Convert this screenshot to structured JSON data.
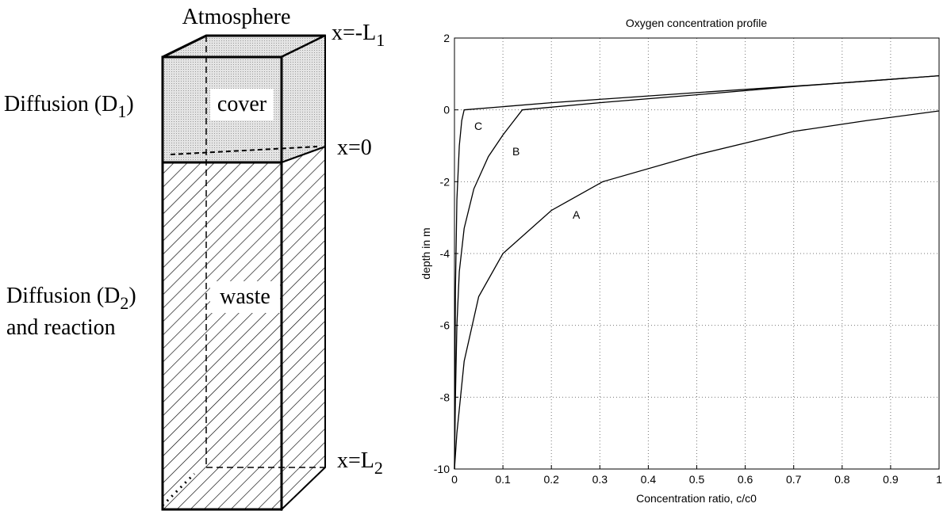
{
  "diagram": {
    "top_label": "Atmosphere",
    "boundary_top": {
      "text": "x=-L",
      "sub": "1"
    },
    "boundary_mid": "x=0",
    "boundary_bottom": {
      "text": "x=L",
      "sub": "2"
    },
    "cover_process": {
      "text": "Diffusion (D",
      "sub": "1",
      "end": ")"
    },
    "waste_process": {
      "text": "Diffusion (D",
      "sub": "2",
      "end": ")"
    },
    "waste_process_line2": "and reaction",
    "cover_label": "cover",
    "waste_label": "waste"
  },
  "chart_data": {
    "type": "line",
    "title": "Oxygen concentration profile",
    "x_label": "Concentration ratio, c/c0",
    "y_label": "depth in m",
    "xlim": [
      0,
      1
    ],
    "ylim": [
      -10,
      2
    ],
    "xticks": [
      0,
      0.1,
      0.2,
      0.3,
      0.4,
      0.5,
      0.6,
      0.7,
      0.8,
      0.9,
      1
    ],
    "yticks": [
      -10,
      -8,
      -6,
      -4,
      -2,
      0,
      2
    ],
    "grid": true,
    "series": [
      {
        "name": "A",
        "color": "#000000",
        "x": [
          0,
          0.005,
          0.02,
          0.05,
          0.1,
          0.2,
          0.306,
          0.5,
          0.7,
          0.85,
          1
        ],
        "values": [
          -10,
          -9,
          -7,
          -5.2,
          -4,
          -2.8,
          -2,
          -1.25,
          -0.6,
          -0.3,
          -0.03
        ]
      },
      {
        "name": "B",
        "color": "#000000",
        "x": [
          0,
          0.002,
          0.005,
          0.01,
          0.02,
          0.04,
          0.07,
          0.1,
          0.12,
          0.14,
          0.3,
          0.5,
          0.7,
          1
        ],
        "values": [
          -10,
          -8,
          -6,
          -4.5,
          -3.3,
          -2.2,
          -1.3,
          -0.7,
          -0.35,
          0,
          0.2,
          0.42,
          0.65,
          0.95
        ]
      },
      {
        "name": "C",
        "color": "#000000",
        "x": [
          0,
          0.002,
          0.005,
          0.01,
          0.015,
          0.02,
          0.2,
          0.5,
          0.8,
          1
        ],
        "values": [
          -10,
          -5,
          -2.5,
          -1,
          -0.3,
          0,
          0.2,
          0.48,
          0.75,
          0.95
        ]
      }
    ]
  }
}
